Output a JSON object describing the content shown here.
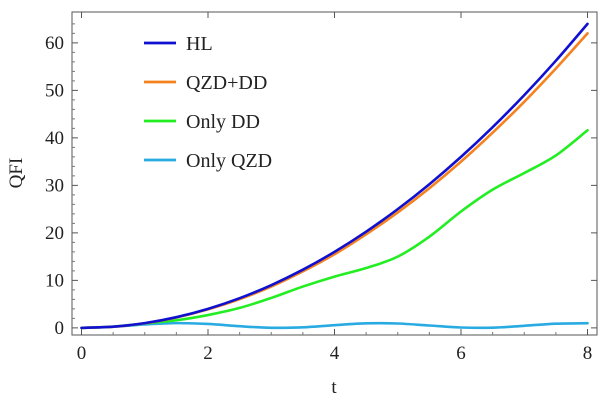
{
  "chart_data": {
    "type": "line",
    "title": "",
    "xlabel": "t",
    "ylabel": "QFI",
    "xlim": [
      -0.15,
      8.15
    ],
    "ylim": [
      -1.5,
      66.5
    ],
    "xticks": [
      0,
      2,
      4,
      6,
      8
    ],
    "yticks": [
      0,
      10,
      20,
      30,
      40,
      50,
      60
    ],
    "legend_position": "top-left",
    "series": [
      {
        "name": "HL",
        "color": "#1010d0",
        "x": [
          0,
          0.5,
          1,
          1.5,
          2,
          2.5,
          3,
          3.5,
          4,
          4.5,
          5,
          5.5,
          6,
          6.5,
          7,
          7.5,
          8
        ],
        "values": [
          0,
          0.25,
          1,
          2.25,
          4,
          6.25,
          9,
          12.25,
          16,
          20.25,
          25,
          30.25,
          36,
          42.25,
          49,
          56.25,
          64
        ]
      },
      {
        "name": "QZD+DD",
        "color": "#f5821f",
        "x": [
          0,
          0.5,
          1,
          1.5,
          2,
          2.5,
          3,
          3.5,
          4,
          4.5,
          5,
          5.5,
          6,
          6.5,
          7,
          7.5,
          8
        ],
        "values": [
          0,
          0.24,
          0.97,
          2.2,
          3.9,
          6.05,
          8.7,
          11.9,
          15.5,
          19.7,
          24.3,
          29.4,
          35,
          41.1,
          47.6,
          54.6,
          62
        ]
      },
      {
        "name": "Only DD",
        "color": "#22ee22",
        "x": [
          0,
          0.5,
          1,
          1.5,
          2,
          2.5,
          3,
          3.5,
          4,
          4.5,
          5,
          5.5,
          6,
          6.5,
          7,
          7.5,
          8
        ],
        "values": [
          0,
          0.25,
          0.95,
          1.6,
          2.7,
          4.2,
          6.3,
          8.7,
          10.8,
          12.6,
          15,
          19.2,
          24.5,
          29.1,
          32.6,
          36.3,
          41.6
        ]
      },
      {
        "name": "Only QZD",
        "color": "#29abe2",
        "x": [
          0,
          0.5,
          1,
          1.5,
          2,
          2.5,
          3,
          3.5,
          4,
          4.5,
          5,
          5.5,
          6,
          6.5,
          7,
          7.5,
          8
        ],
        "values": [
          0,
          0.23,
          0.71,
          1,
          0.83,
          0.35,
          0.02,
          0.12,
          0.57,
          0.96,
          0.92,
          0.5,
          0.08,
          0.04,
          0.44,
          0.88,
          0.98
        ]
      }
    ]
  }
}
